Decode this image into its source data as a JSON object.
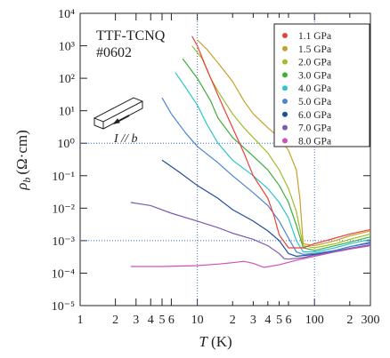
{
  "chart_data": {
    "type": "line",
    "title": "TTF-TCNQ",
    "subtitle": "#0602",
    "annotation": "I // b",
    "xlabel_symbol": "T",
    "xlabel_unit": "(K)",
    "ylabel_symbol": "ρ",
    "ylabel_sub": "b",
    "ylabel_unit": "(Ω·cm)",
    "log_x": true,
    "log_y": true,
    "xlim": [
      1,
      300
    ],
    "ylim": [
      1e-05,
      10000
    ],
    "xticks": [
      1,
      2,
      3,
      4,
      5,
      6,
      10,
      {
        "value": 20,
        "label": "2"
      },
      {
        "value": 30,
        "label": "3"
      },
      {
        "value": 40,
        "label": "4"
      },
      {
        "value": 50,
        "label": "5"
      },
      {
        "value": 60,
        "label": "6"
      },
      100,
      {
        "value": 200,
        "label": "2"
      },
      300
    ],
    "yticks": [
      {
        "value": 1e-05,
        "label": "10⁻⁵"
      },
      {
        "value": 0.0001,
        "label": "10⁻⁴"
      },
      {
        "value": 0.001,
        "label": "10⁻³"
      },
      {
        "value": 0.01,
        "label": "10⁻²"
      },
      {
        "value": 0.1,
        "label": "10⁻¹"
      },
      {
        "value": 1,
        "label": "10⁰"
      },
      {
        "value": 10,
        "label": "10¹"
      },
      {
        "value": 100,
        "label": "10²"
      },
      {
        "value": 1000,
        "label": "10³"
      },
      {
        "value": 10000,
        "label": "10⁴"
      }
    ],
    "xgrid": [
      10,
      100
    ],
    "ygrid": [
      1,
      0.001
    ],
    "legend": "upper right",
    "series": [
      {
        "name": "1.1 GPa",
        "color": "#e8403a",
        "x": [
          9,
          10,
          12,
          15,
          20,
          25,
          30,
          40,
          45,
          50,
          60,
          80,
          100,
          150,
          200,
          300
        ],
        "values": [
          2000,
          1000,
          200,
          30,
          3,
          0.5,
          0.1,
          0.02,
          0.006,
          0.0015,
          0.0006,
          0.0006,
          0.0008,
          0.0012,
          0.0016,
          0.0022
        ]
      },
      {
        "name": "1.5 GPa",
        "color": "#c8a02a",
        "x": [
          10,
          12,
          15,
          20,
          25,
          30,
          40,
          50,
          60,
          70,
          75,
          80,
          100,
          150,
          200,
          300
        ],
        "values": [
          1500,
          800,
          300,
          80,
          20,
          8,
          3,
          1.5,
          0.6,
          0.15,
          0.02,
          0.0008,
          0.0007,
          0.001,
          0.0014,
          0.002
        ]
      },
      {
        "name": "2.0 GPa",
        "color": "#9cbf2a",
        "x": [
          9,
          11,
          13,
          15,
          20,
          25,
          30,
          40,
          50,
          60,
          70,
          80,
          100,
          150,
          200,
          300
        ],
        "values": [
          1000,
          400,
          100,
          40,
          8,
          3,
          1.5,
          0.5,
          0.15,
          0.04,
          0.008,
          0.0007,
          0.0006,
          0.0008,
          0.0011,
          0.0016
        ]
      },
      {
        "name": "3.0 GPa",
        "color": "#3fae3a",
        "x": [
          7.5,
          10,
          13,
          15,
          20,
          30,
          40,
          50,
          60,
          70,
          80,
          100,
          150,
          200,
          300
        ],
        "values": [
          400,
          100,
          20,
          6,
          1.5,
          0.4,
          0.15,
          0.05,
          0.015,
          0.003,
          0.0006,
          0.0005,
          0.0007,
          0.0009,
          0.0013
        ]
      },
      {
        "name": "4.0 GPa",
        "color": "#2ec4d0",
        "x": [
          6.5,
          8,
          10,
          12,
          15,
          20,
          30,
          40,
          50,
          60,
          70,
          80,
          100,
          150,
          200,
          300
        ],
        "values": [
          150,
          50,
          15,
          4,
          1,
          0.3,
          0.1,
          0.04,
          0.015,
          0.005,
          0.001,
          0.00045,
          0.00045,
          0.0006,
          0.0008,
          0.0011
        ]
      },
      {
        "name": "5.0 GPa",
        "color": "#4a86d0",
        "x": [
          5,
          6,
          8,
          10,
          15,
          20,
          30,
          40,
          50,
          60,
          70,
          80,
          100,
          150,
          200,
          300
        ],
        "values": [
          25,
          8,
          2,
          0.8,
          0.25,
          0.1,
          0.03,
          0.012,
          0.004,
          0.0012,
          0.00045,
          0.00038,
          0.0004,
          0.0005,
          0.00065,
          0.0009
        ]
      },
      {
        "name": "6.0 GPa",
        "color": "#1f4e9a",
        "x": [
          5,
          7,
          10,
          15,
          20,
          30,
          40,
          50,
          60,
          70,
          100,
          150,
          200,
          300
        ],
        "values": [
          0.3,
          0.13,
          0.05,
          0.02,
          0.009,
          0.004,
          0.002,
          0.001,
          0.0004,
          0.00033,
          0.00038,
          0.0005,
          0.00065,
          0.00085
        ]
      },
      {
        "name": "7.0 GPa",
        "color": "#7a5cb0",
        "x": [
          2.7,
          4,
          6,
          10,
          15,
          20,
          30,
          40,
          50,
          55,
          60,
          80,
          100,
          150,
          200,
          300
        ],
        "values": [
          0.015,
          0.012,
          0.007,
          0.004,
          0.0025,
          0.0017,
          0.0011,
          0.0007,
          0.0004,
          0.00028,
          0.00027,
          0.0003,
          0.00036,
          0.00047,
          0.00058,
          0.00075
        ]
      },
      {
        "name": "8.0 GPa",
        "color": "#d050b8",
        "x": [
          2.7,
          5,
          10,
          15,
          20,
          25,
          30,
          37,
          50,
          70,
          100,
          150,
          200,
          300
        ],
        "values": [
          0.00016,
          0.00016,
          0.00017,
          0.00019,
          0.00021,
          0.00023,
          0.0002,
          0.00015,
          0.00018,
          0.00025,
          0.00033,
          0.00045,
          0.00055,
          0.0007
        ]
      }
    ]
  }
}
